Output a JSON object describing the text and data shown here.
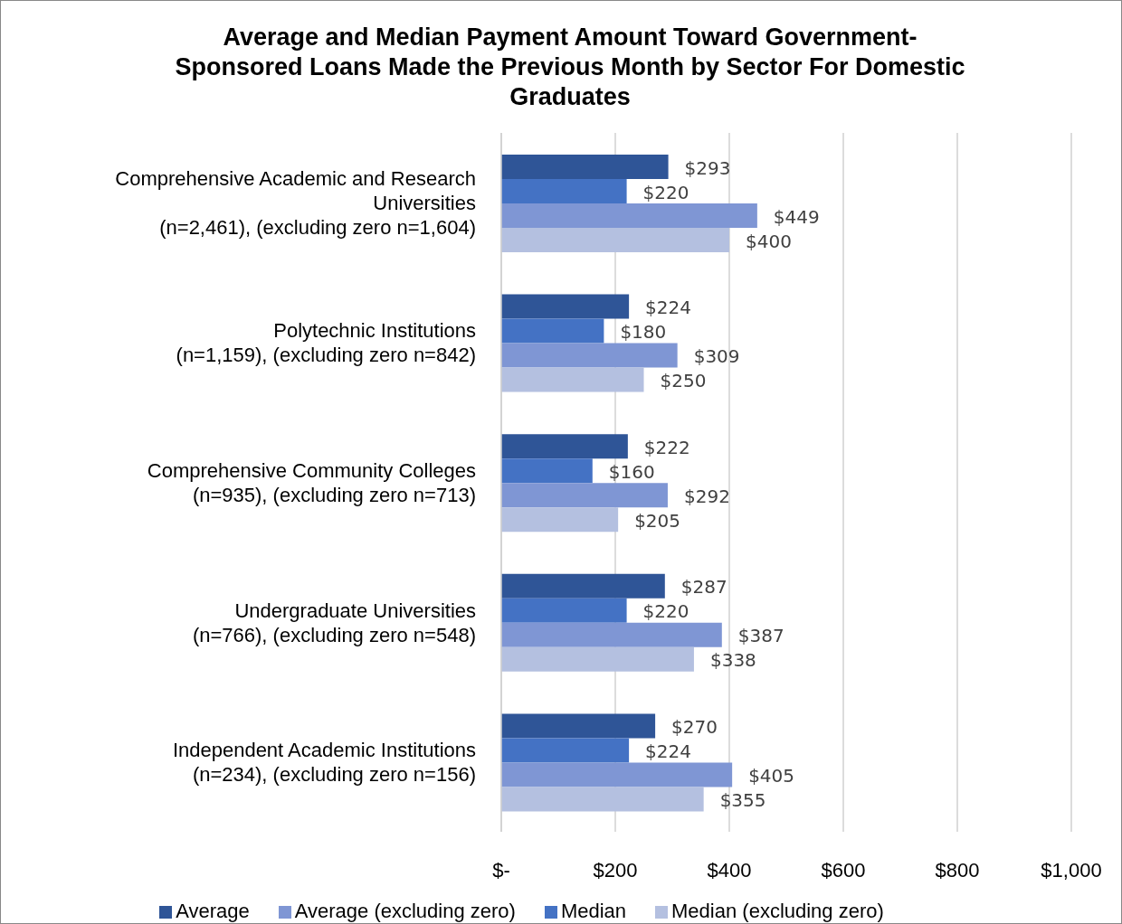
{
  "chart_data": {
    "type": "bar",
    "orientation": "horizontal",
    "title": "Average and Median Payment Amount Toward Government-\nSponsored Loans Made the Previous Month by Sector For Domestic\nGraduates",
    "categories": [
      "Comprehensive Academic and Research\nUniversities\n(n=2,461), (excluding zero n=1,604)",
      "Polytechnic Institutions\n(n=1,159), (excluding zero n=842)",
      "Comprehensive Community Colleges\n(n=935), (excluding zero n=713)",
      "Undergraduate Universities\n(n=766), (excluding zero n=548)",
      "Independent Academic Institutions\n(n=234), (excluding zero n=156)"
    ],
    "series": [
      {
        "name": "Average",
        "color": "#2f5597",
        "values": [
          293,
          224,
          222,
          287,
          270
        ],
        "value_labels": [
          "$293",
          "$224",
          "$222",
          "$287",
          "$270"
        ]
      },
      {
        "name": "Median",
        "color": "#4472c4",
        "values": [
          220,
          180,
          160,
          220,
          224
        ],
        "value_labels": [
          "$220",
          "$180",
          "$160",
          "$220",
          "$224"
        ]
      },
      {
        "name": "Average (excluding zero)",
        "color": "#7f96d4",
        "values": [
          449,
          309,
          292,
          387,
          405
        ],
        "value_labels": [
          "$449",
          "$309",
          "$292",
          "$387",
          "$405"
        ]
      },
      {
        "name": "Median (excluding zero)",
        "color": "#b4c0e0",
        "values": [
          400,
          250,
          205,
          338,
          355
        ],
        "value_labels": [
          "$400",
          "$250",
          "$205",
          "$338",
          "$355"
        ]
      }
    ],
    "xlim": [
      0,
      1000
    ],
    "xticks": [
      {
        "value": 0,
        "label": "$-"
      },
      {
        "value": 200,
        "label": "$200"
      },
      {
        "value": 400,
        "label": "$400"
      },
      {
        "value": 600,
        "label": "$600"
      },
      {
        "value": 800,
        "label": "$800"
      },
      {
        "value": 1000,
        "label": "$1,000"
      }
    ],
    "grid": "x",
    "legend": "bottom"
  }
}
